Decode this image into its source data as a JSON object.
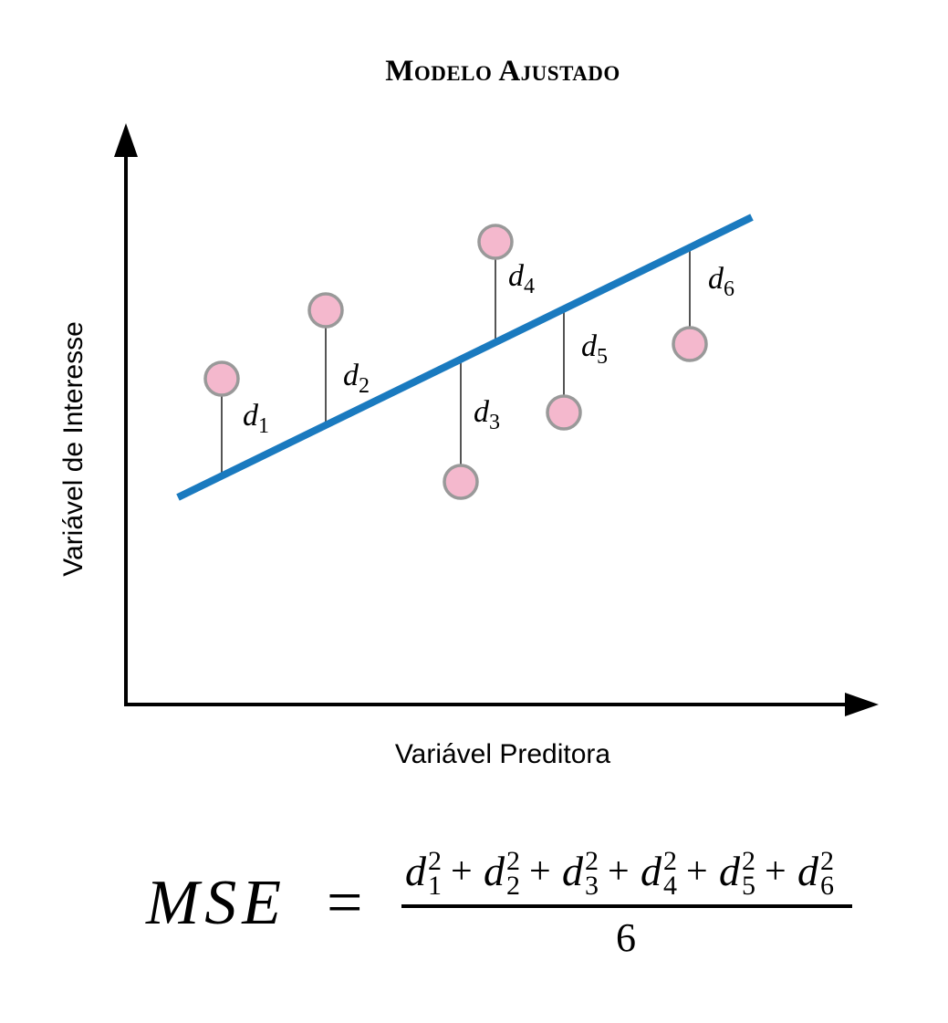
{
  "title": "Modelo Ajustado",
  "x_axis_label": "Variável Preditora",
  "y_axis_label": "Variável de Interesse",
  "colors": {
    "line": "#1a7abf",
    "point_fill": "#f4b8cd",
    "point_stroke": "#999999",
    "residual": "#555555"
  },
  "residuals": [
    {
      "letter": "d",
      "index": "1"
    },
    {
      "letter": "d",
      "index": "2"
    },
    {
      "letter": "d",
      "index": "3"
    },
    {
      "letter": "d",
      "index": "4"
    },
    {
      "letter": "d",
      "index": "5"
    },
    {
      "letter": "d",
      "index": "6"
    }
  ],
  "formula": {
    "lhs": "MSE",
    "equals": "=",
    "plus": "+",
    "exponent": "2",
    "denominator": "6"
  }
}
